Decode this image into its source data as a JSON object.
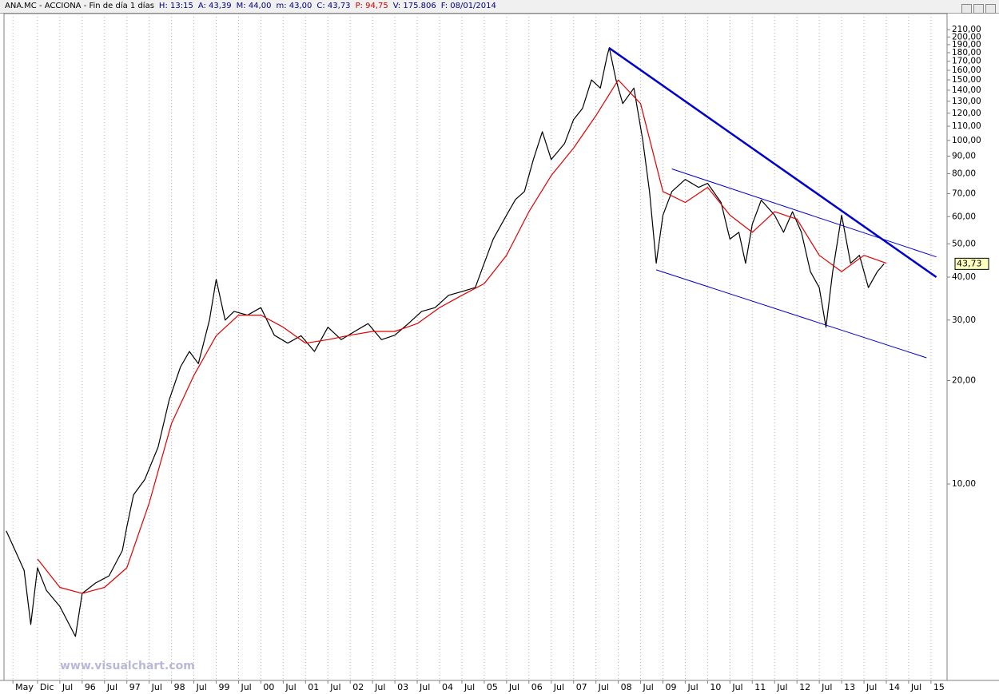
{
  "header": {
    "items": [
      {
        "text": "ANA.MC - ACCIONA - Fin de día 1 días",
        "color": "#000000"
      },
      {
        "text": "H: 13:15",
        "color": "#000080"
      },
      {
        "text": "A: 43,39",
        "color": "#000080"
      },
      {
        "text": "M: 44,00",
        "color": "#000080"
      },
      {
        "text": "m: 43,00",
        "color": "#000080"
      },
      {
        "text": "C: 43,73",
        "color": "#000080"
      },
      {
        "text": "P: 94,75",
        "color": "#d00000"
      },
      {
        "text": "V: 175.806",
        "color": "#000080"
      },
      {
        "text": "F: 08/01/2014",
        "color": "#000080"
      }
    ]
  },
  "chart_data": {
    "type": "line",
    "log_scale": true,
    "grid": true,
    "watermark": "www.visualchart.com",
    "xlim": [
      1994.25,
      2015.36
    ],
    "ylim": [
      2.68,
      234
    ],
    "xticks": [
      {
        "value": 1994.45,
        "label": "May"
      },
      {
        "value": 1995.0,
        "label": "Dic"
      },
      {
        "value": 1995.5,
        "label": "Jul"
      },
      {
        "value": 1996.0,
        "label": "96"
      },
      {
        "value": 1996.5,
        "label": "Jul"
      },
      {
        "value": 1997.0,
        "label": "97"
      },
      {
        "value": 1997.5,
        "label": "Jul"
      },
      {
        "value": 1998.0,
        "label": "98"
      },
      {
        "value": 1998.5,
        "label": "Jul"
      },
      {
        "value": 1999.0,
        "label": "99"
      },
      {
        "value": 1999.5,
        "label": "Jul"
      },
      {
        "value": 2000.0,
        "label": "00"
      },
      {
        "value": 2000.5,
        "label": "Jul"
      },
      {
        "value": 2001.0,
        "label": "01"
      },
      {
        "value": 2001.5,
        "label": "Jul"
      },
      {
        "value": 2002.0,
        "label": "02"
      },
      {
        "value": 2002.5,
        "label": "Jul"
      },
      {
        "value": 2003.0,
        "label": "03"
      },
      {
        "value": 2003.5,
        "label": "Jul"
      },
      {
        "value": 2004.0,
        "label": "04"
      },
      {
        "value": 2004.5,
        "label": "Jul"
      },
      {
        "value": 2005.0,
        "label": "05"
      },
      {
        "value": 2005.5,
        "label": "Jul"
      },
      {
        "value": 2006.0,
        "label": "06"
      },
      {
        "value": 2006.5,
        "label": "Jul"
      },
      {
        "value": 2007.0,
        "label": "07"
      },
      {
        "value": 2007.5,
        "label": "Jul"
      },
      {
        "value": 2008.0,
        "label": "08"
      },
      {
        "value": 2008.5,
        "label": "Jul"
      },
      {
        "value": 2009.0,
        "label": "09"
      },
      {
        "value": 2009.5,
        "label": "Jul"
      },
      {
        "value": 2010.0,
        "label": "10"
      },
      {
        "value": 2010.5,
        "label": "Jul"
      },
      {
        "value": 2011.0,
        "label": "11"
      },
      {
        "value": 2011.5,
        "label": "Jul"
      },
      {
        "value": 2012.0,
        "label": "12"
      },
      {
        "value": 2012.5,
        "label": "Jul"
      },
      {
        "value": 2013.0,
        "label": "13"
      },
      {
        "value": 2013.5,
        "label": "Jul"
      },
      {
        "value": 2014.0,
        "label": "14"
      },
      {
        "value": 2014.5,
        "label": "Jul"
      },
      {
        "value": 2015.0,
        "label": "15"
      }
    ],
    "yticks": [
      {
        "value": 10,
        "label": "10,00"
      },
      {
        "value": 20,
        "label": "20,00"
      },
      {
        "value": 30,
        "label": "30,00"
      },
      {
        "value": 40,
        "label": "40,00"
      },
      {
        "value": 50,
        "label": "50,00"
      },
      {
        "value": 60,
        "label": "60,00"
      },
      {
        "value": 70,
        "label": "70,00"
      },
      {
        "value": 80,
        "label": "80,00"
      },
      {
        "value": 90,
        "label": "90,00"
      },
      {
        "value": 100,
        "label": "100,00"
      },
      {
        "value": 110,
        "label": "110,00"
      },
      {
        "value": 120,
        "label": "120,00"
      },
      {
        "value": 130,
        "label": "130,00"
      },
      {
        "value": 140,
        "label": "140,00"
      },
      {
        "value": 150,
        "label": "150,00"
      },
      {
        "value": 160,
        "label": "160,00"
      },
      {
        "value": 170,
        "label": "170,00"
      },
      {
        "value": 180,
        "label": "180,00"
      },
      {
        "value": 190,
        "label": "190,00"
      },
      {
        "value": 200,
        "label": "200,00"
      },
      {
        "value": 210,
        "label": "210,00"
      }
    ],
    "last_price": {
      "value": 43.73,
      "label": "43,73"
    },
    "series": [
      {
        "color": "#000000",
        "width": 1.2,
        "x": [
          1994.3,
          1994.5,
          1994.7,
          1994.85,
          1995.0,
          1995.2,
          1995.5,
          1995.85,
          1996.0,
          1996.3,
          1996.6,
          1996.9,
          1997.0,
          1997.15,
          1997.4,
          1997.7,
          1997.95,
          1998.2,
          1998.4,
          1998.6,
          1998.85,
          1999.0,
          1999.2,
          1999.4,
          1999.7,
          2000.0,
          2000.3,
          2000.6,
          2000.9,
          2001.2,
          2001.5,
          2001.8,
          2002.1,
          2002.4,
          2002.7,
          2003.0,
          2003.3,
          2003.6,
          2003.9,
          2004.2,
          2004.5,
          2004.8,
          2005.0,
          2005.2,
          2005.5,
          2005.7,
          2005.9,
          2006.1,
          2006.3,
          2006.5,
          2006.8,
          2007.0,
          2007.2,
          2007.4,
          2007.6,
          2007.75,
          2007.8,
          2007.95,
          2008.1,
          2008.35,
          2008.55,
          2008.7,
          2008.8,
          2008.85,
          2009.0,
          2009.2,
          2009.5,
          2009.8,
          2010.0,
          2010.3,
          2010.5,
          2010.7,
          2010.85,
          2011.0,
          2011.2,
          2011.5,
          2011.7,
          2011.9,
          2012.1,
          2012.3,
          2012.5,
          2012.65,
          2012.8,
          2013.0,
          2013.2,
          2013.4,
          2013.6,
          2013.8,
          2013.95
        ],
        "values": [
          7.3,
          6.4,
          5.6,
          3.9,
          5.7,
          4.9,
          4.4,
          3.6,
          4.8,
          5.15,
          5.4,
          6.4,
          7.5,
          9.3,
          10.3,
          12.8,
          17.6,
          21.9,
          24.3,
          22.4,
          30,
          39.4,
          30,
          31.8,
          31,
          32.6,
          27.1,
          25.7,
          27,
          24.3,
          28.6,
          26.3,
          27.8,
          29.3,
          26.3,
          27.1,
          29.3,
          31.8,
          32.6,
          35.4,
          36.3,
          37.3,
          43.9,
          51.6,
          60.6,
          67.3,
          71,
          88,
          106,
          88,
          98,
          115,
          124,
          150,
          142,
          176,
          186,
          150,
          128,
          142,
          100,
          71,
          51.6,
          43.9,
          60.6,
          71,
          77,
          73,
          75,
          66,
          51.6,
          54,
          43.9,
          57,
          67,
          60.6,
          54,
          62,
          54,
          41.5,
          37.3,
          28.6,
          41.5,
          60.6,
          43.9,
          46.3,
          37.3,
          41.5,
          43.73
        ]
      },
      {
        "color": "#e00000",
        "width": 1.2,
        "x": [
          1995.0,
          1995.5,
          1996.0,
          1996.5,
          1997.0,
          1997.5,
          1998.0,
          1998.5,
          1999.0,
          1999.5,
          2000.0,
          2000.5,
          2001.0,
          2001.5,
          2002.0,
          2002.5,
          2003.0,
          2003.5,
          2004.0,
          2004.5,
          2005.0,
          2005.5,
          2006.0,
          2006.5,
          2007.0,
          2007.5,
          2008.0,
          2008.5,
          2009.0,
          2009.5,
          2010.0,
          2010.5,
          2011.0,
          2011.5,
          2012.0,
          2012.5,
          2013.0,
          2013.5,
          2014.0
        ],
        "values": [
          6.05,
          5.0,
          4.8,
          5.0,
          5.7,
          8.8,
          15,
          20.7,
          27,
          31,
          31,
          28.6,
          25.7,
          26.3,
          27.1,
          27.8,
          27.8,
          29.3,
          32.6,
          35.4,
          38.3,
          46.3,
          62,
          79,
          95,
          118,
          150,
          128,
          71,
          66,
          73,
          60.6,
          54,
          62,
          59,
          46.3,
          41.5,
          46.3,
          43.9
        ]
      }
    ],
    "trendlines": [
      {
        "color": "#0000cc",
        "width": 2.5,
        "x": [
          2007.79,
          2015.12
        ],
        "values": [
          186,
          40
        ]
      },
      {
        "color": "#0000cc",
        "width": 1,
        "x": [
          2009.2,
          2015.12
        ],
        "values": [
          82.6,
          45.8
        ]
      },
      {
        "color": "#0000cc",
        "width": 1,
        "x": [
          2008.85,
          2014.9
        ],
        "values": [
          42,
          23.3
        ]
      }
    ]
  }
}
